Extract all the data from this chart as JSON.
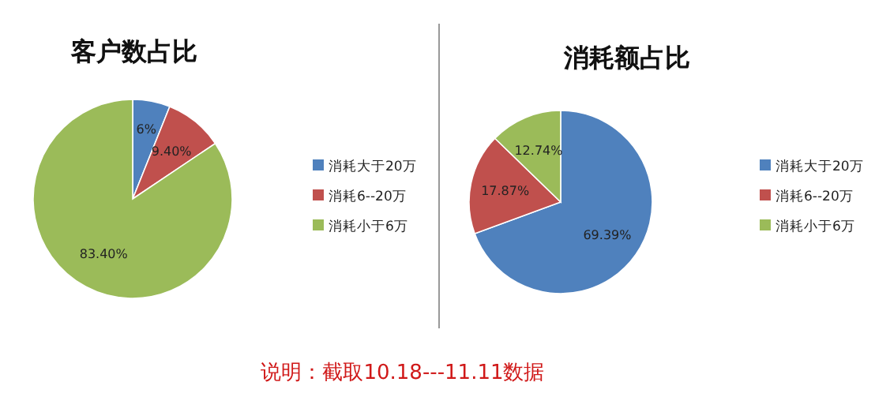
{
  "chart_data": [
    {
      "type": "pie",
      "title": "客户数占比",
      "categories": [
        "消耗大于20万",
        "消耗6--20万",
        "消耗小于6万"
      ],
      "values": [
        6,
        9.4,
        83.4
      ],
      "value_labels": [
        "6%",
        "9.40%",
        "83.40%"
      ],
      "colors": [
        "#4f81bd",
        "#c0504d",
        "#9bbb59"
      ],
      "legend": "right",
      "annotations": [
        "说明：截取10.18---11.11数据"
      ]
    },
    {
      "type": "pie",
      "title": "消耗额占比",
      "categories": [
        "消耗大于20万",
        "消耗6--20万",
        "消耗小于6万"
      ],
      "values": [
        69.39,
        17.87,
        12.74
      ],
      "value_labels": [
        "69.39%",
        "17.87%",
        "12.74%"
      ],
      "colors": [
        "#4f81bd",
        "#c0504d",
        "#9bbb59"
      ],
      "legend": "right"
    }
  ]
}
